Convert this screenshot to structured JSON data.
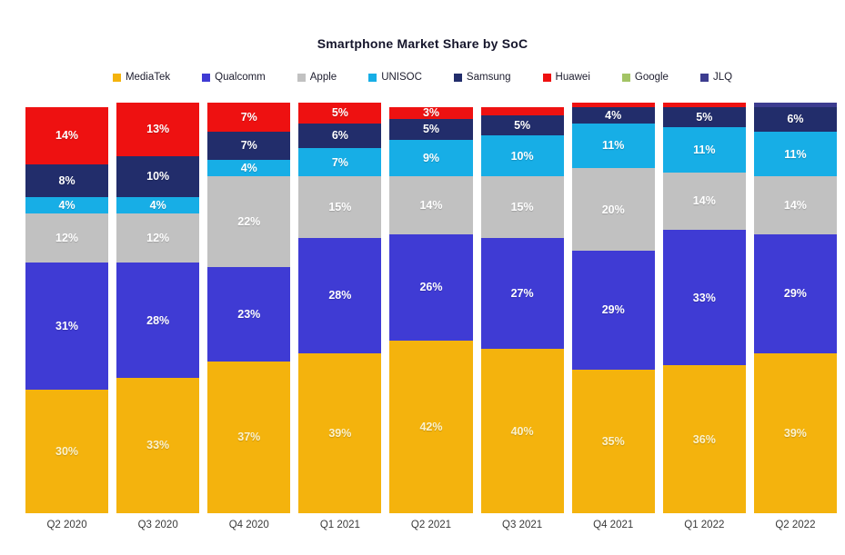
{
  "chart_data": {
    "type": "bar",
    "stacked": true,
    "title": "Smartphone Market Share by SoC",
    "legend_position": "top",
    "grid": false,
    "y_axis_visible": false,
    "ylim": [
      0,
      100
    ],
    "label_suffix": "%",
    "label_min_value": 3,
    "categories": [
      "Q2 2020",
      "Q3 2020",
      "Q4 2020",
      "Q1 2021",
      "Q2 2021",
      "Q3 2021",
      "Q4 2021",
      "Q1 2022",
      "Q2 2022"
    ],
    "series": [
      {
        "name": "MediaTek",
        "color": "#F4B30D",
        "label_color": "#FBF2CE",
        "values": [
          30,
          33,
          37,
          39,
          42,
          40,
          35,
          36,
          39
        ]
      },
      {
        "name": "Qualcomm",
        "color": "#3F3BD4",
        "label_color": "#FFFFFF",
        "values": [
          31,
          28,
          23,
          28,
          26,
          27,
          29,
          33,
          29
        ]
      },
      {
        "name": "Apple",
        "color": "#C1C1C1",
        "label_color": "#FFFFFF",
        "values": [
          12,
          12,
          22,
          15,
          14,
          15,
          20,
          14,
          14
        ]
      },
      {
        "name": "UNISOC",
        "color": "#17AEE6",
        "label_color": "#FFFFFF",
        "values": [
          4,
          4,
          4,
          7,
          9,
          10,
          11,
          11,
          11
        ]
      },
      {
        "name": "Samsung",
        "color": "#222D6B",
        "label_color": "#FFFFFF",
        "values": [
          8,
          10,
          7,
          6,
          5,
          5,
          4,
          5,
          6
        ]
      },
      {
        "name": "Huawei",
        "color": "#EE1111",
        "label_color": "#FFFFFF",
        "values": [
          14,
          13,
          7,
          5,
          3,
          2,
          1,
          1,
          0
        ]
      },
      {
        "name": "Google",
        "color": "#A3C465",
        "label_color": "#FFFFFF",
        "values": [
          0,
          0,
          0,
          0,
          0,
          0,
          0,
          0,
          0
        ]
      },
      {
        "name": "JLQ",
        "color": "#3C3C8F",
        "label_color": "#FFFFFF",
        "values": [
          0,
          0,
          0,
          0,
          0,
          0,
          0,
          0,
          1
        ]
      }
    ]
  }
}
